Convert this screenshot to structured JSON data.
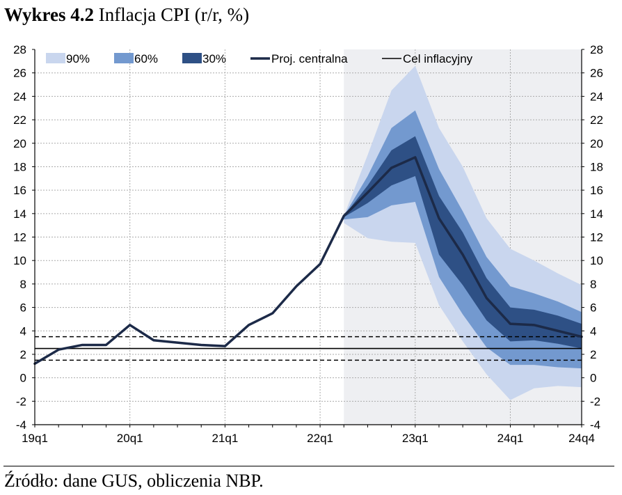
{
  "title": {
    "bold": "Wykres 4.2",
    "rest": "Inflacja CPI (r/r, %)"
  },
  "source": "Źródło: dane GUS, obliczenia NBP.",
  "colors": {
    "band90": "#c9d6ee",
    "band60": "#7399cf",
    "band30": "#2e5085",
    "central": "#1c2a48",
    "projection_bg": "#eeeff2",
    "grid": "#aaaaaa"
  },
  "chart_data": {
    "type": "area",
    "ylim": [
      -4,
      28
    ],
    "yticks": [
      "-4",
      "-2",
      "0",
      "2",
      "4",
      "6",
      "8",
      "10",
      "12",
      "14",
      "16",
      "18",
      "20",
      "22",
      "24",
      "26",
      "28"
    ],
    "xlabels": [
      "19q1",
      "20q1",
      "21q1",
      "22q1",
      "23q1",
      "24q1",
      "24q4"
    ],
    "quarters": [
      "19q1",
      "19q2",
      "19q3",
      "19q4",
      "20q1",
      "20q2",
      "20q3",
      "20q4",
      "21q1",
      "21q2",
      "21q3",
      "21q4",
      "22q1",
      "22q2",
      "22q3",
      "22q4",
      "23q1",
      "23q2",
      "23q3",
      "23q4",
      "24q1",
      "24q2",
      "24q3",
      "24q4"
    ],
    "legend": {
      "b90": "90%",
      "b60": "60%",
      "b30": "30%",
      "central": "Proj. centralna",
      "target": "Cel inflacyjny"
    },
    "central": [
      1.2,
      2.4,
      2.8,
      2.8,
      4.5,
      3.2,
      3.0,
      2.8,
      2.7,
      4.5,
      5.5,
      7.8,
      9.7,
      13.8,
      15.8,
      17.9,
      18.8,
      13.6,
      10.5,
      6.8,
      4.6,
      4.5,
      4.0,
      3.5
    ],
    "projection_start_index": 13,
    "bands": {
      "b90": {
        "upper": [
          13.8,
          19.0,
          24.5,
          26.6,
          21.3,
          18.0,
          13.6,
          11.0,
          10.0,
          8.9,
          7.9
        ],
        "lower": [
          13.2,
          11.9,
          11.6,
          11.5,
          6.2,
          3.1,
          0.3,
          -1.9,
          -0.9,
          -0.7,
          -0.8
        ]
      },
      "b60": {
        "upper": [
          13.8,
          17.2,
          21.3,
          22.8,
          17.8,
          14.2,
          10.3,
          7.8,
          7.2,
          6.5,
          5.6
        ],
        "lower": [
          13.5,
          13.7,
          14.7,
          15.0,
          8.6,
          5.4,
          2.6,
          1.1,
          1.1,
          0.9,
          0.8
        ]
      },
      "b30": {
        "upper": [
          13.8,
          16.4,
          19.4,
          20.6,
          15.5,
          12.4,
          8.5,
          6.0,
          5.8,
          5.3,
          4.6
        ],
        "lower": [
          13.7,
          14.9,
          16.4,
          17.2,
          10.5,
          7.9,
          4.9,
          3.1,
          3.2,
          2.9,
          2.5
        ]
      }
    },
    "target": 2.5,
    "tolerance": [
      1.5,
      3.5
    ]
  }
}
